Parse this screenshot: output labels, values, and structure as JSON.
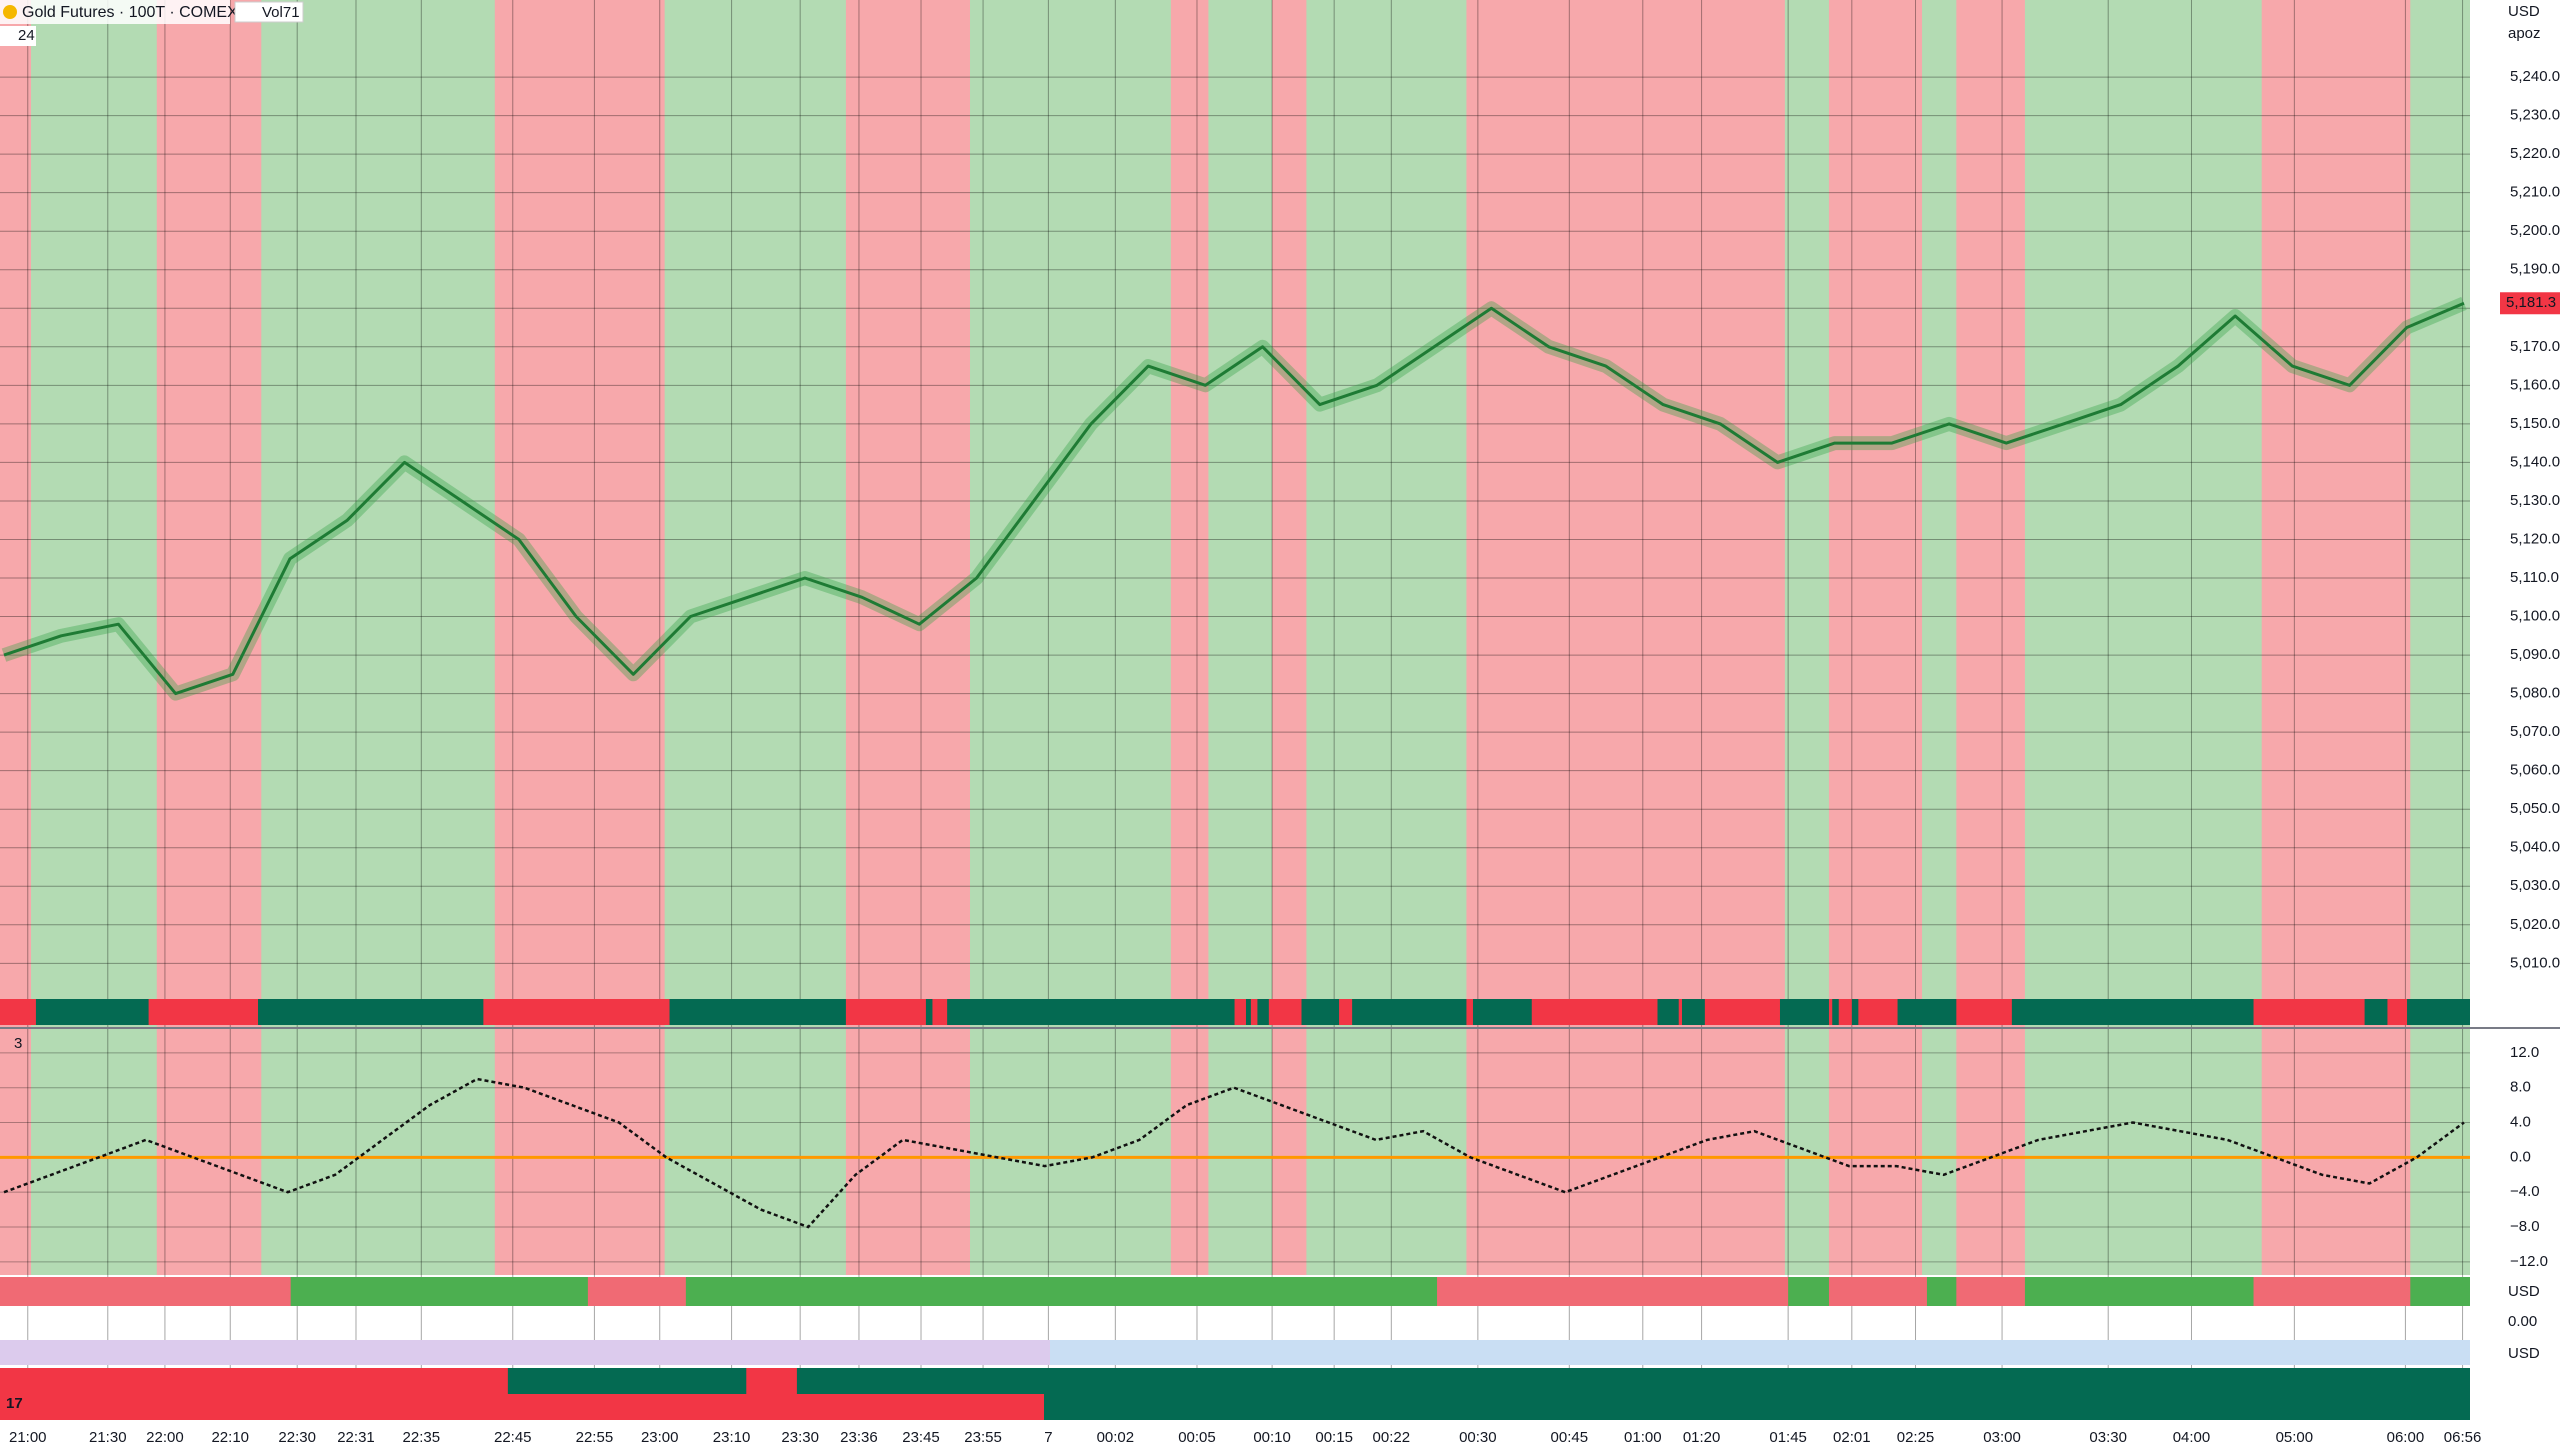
{
  "header": {
    "symbol": "Gold Futures · 100T · COMEX",
    "volume_label": "Vol71",
    "pane_label": "24"
  },
  "price_pane": {
    "currency": "USD",
    "scale_mode": "apoz",
    "ylim": [
      4994,
      5260
    ],
    "yticks": [
      {
        "value": 5240,
        "label": "5,240.0"
      },
      {
        "value": 5230,
        "label": "5,230.0"
      },
      {
        "value": 5220,
        "label": "5,220.0"
      },
      {
        "value": 5210,
        "label": "5,210.0"
      },
      {
        "value": 5200,
        "label": "5,200.0"
      },
      {
        "value": 5190,
        "label": "5,190.0"
      },
      {
        "value": 5180,
        "label": "5,180.0"
      },
      {
        "value": 5170,
        "label": "5,170.0"
      },
      {
        "value": 5160,
        "label": "5,160.0"
      },
      {
        "value": 5150,
        "label": "5,150.0"
      },
      {
        "value": 5140,
        "label": "5,140.0"
      },
      {
        "value": 5130,
        "label": "5,130.0"
      },
      {
        "value": 5120,
        "label": "5,120.0"
      },
      {
        "value": 5110,
        "label": "5,110.0"
      },
      {
        "value": 5100,
        "label": "5,100.0"
      },
      {
        "value": 5090,
        "label": "5,090.0"
      },
      {
        "value": 5080,
        "label": "5,080.0"
      },
      {
        "value": 5070,
        "label": "5,070.0"
      },
      {
        "value": 5060,
        "label": "5,060.0"
      },
      {
        "value": 5050,
        "label": "5,050.0"
      },
      {
        "value": 5040,
        "label": "5,040.0"
      },
      {
        "value": 5030,
        "label": "5,030.0"
      },
      {
        "value": 5020,
        "label": "5,020.0"
      },
      {
        "value": 5010,
        "label": "5,010.0"
      }
    ],
    "last_price": {
      "value": 5181.3,
      "label": "5,181.3"
    },
    "close": [
      5090,
      5095,
      5098,
      5080,
      5085,
      5115,
      5125,
      5140,
      5130,
      5120,
      5100,
      5085,
      5100,
      5105,
      5110,
      5105,
      5098,
      5110,
      5130,
      5150,
      5165,
      5160,
      5170,
      5155,
      5160,
      5170,
      5180,
      5170,
      5165,
      5155,
      5150,
      5140,
      5145,
      5145,
      5150,
      5145,
      5150,
      5155,
      5165,
      5178,
      5165,
      5160,
      5175,
      5181.3
    ]
  },
  "oscillator_pane": {
    "pane_label": "3",
    "ylim": [
      -13.4,
      14.4
    ],
    "yticks": [
      {
        "value": 12,
        "label": "12.0"
      },
      {
        "value": 8,
        "label": "8.0"
      },
      {
        "value": 4,
        "label": "4.0"
      },
      {
        "value": 0,
        "label": "0.0"
      },
      {
        "value": -4,
        "label": "−4.0"
      },
      {
        "value": -8,
        "label": "−8.0"
      },
      {
        "value": -12,
        "label": "−12.0"
      }
    ],
    "values": [
      -4,
      -2,
      0,
      2,
      0,
      -2,
      -4,
      -2,
      2,
      6,
      9,
      8,
      6,
      4,
      0,
      -3,
      -6,
      -8,
      -2,
      2,
      1,
      0,
      -1,
      0,
      2,
      6,
      8,
      6,
      4,
      2,
      3,
      0,
      -2,
      -4,
      -2,
      0,
      2,
      3,
      1,
      -1,
      -1,
      -2,
      0,
      2,
      3,
      4,
      3,
      2,
      0,
      -2,
      -3,
      0,
      4
    ]
  },
  "lower_pane": {
    "currency": "USD",
    "value_label": "0.00",
    "currency_2": "USD"
  },
  "bottom_label": "17",
  "time_axis": [
    "21:00",
    "21:30",
    "22:00",
    "22:10",
    "22:30",
    "22:31",
    "22:35",
    "22:45",
    "22:55",
    "23:00",
    "23:10",
    "23:30",
    "23:36",
    "23:45",
    "23:55",
    "7",
    "00:02",
    "00:05",
    "00:10",
    "00:15",
    "00:22",
    "00:30",
    "00:45",
    "01:00",
    "01:20",
    "01:45",
    "02:01",
    "02:25",
    "03:00",
    "03:30",
    "04:00",
    "05:00",
    "06:00",
    "06:56"
  ]
}
